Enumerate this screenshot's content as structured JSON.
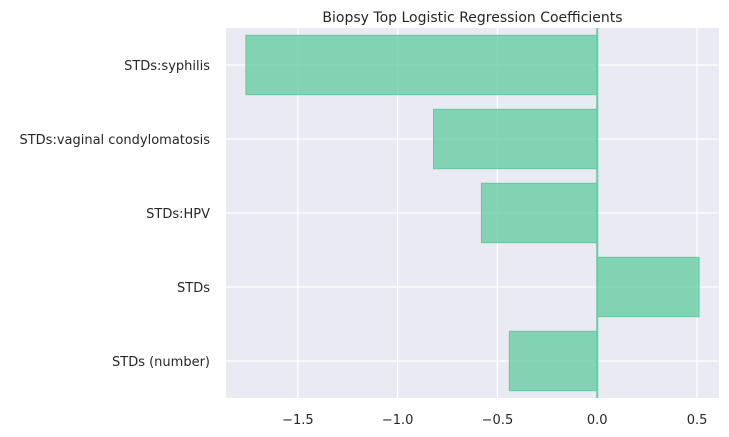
{
  "chart_data": {
    "type": "bar",
    "orientation": "horizontal",
    "title": "Biopsy Top Logistic Regression Coefficients",
    "xlabel": "",
    "ylabel": "",
    "categories": [
      "STDs:syphilis",
      "STDs:vaginal condylomatosis",
      "STDs:HPV",
      "STDs",
      "STDs (number)"
    ],
    "values": [
      -1.76,
      -0.82,
      -0.58,
      0.51,
      -0.44
    ],
    "xlim": [
      -1.86,
      0.61
    ],
    "xticks": [
      -1.5,
      -1.0,
      -0.5,
      0.0,
      0.5
    ],
    "xtick_labels": [
      "−1.5",
      "−1.0",
      "−0.5",
      "0.0",
      "0.5"
    ],
    "grid": true,
    "bar_color": "#66cda4",
    "bar_edge_color": "#66cda4",
    "zero_line_color": "#66cda4",
    "background_color": "#eaeaf2",
    "grid_color": "#ffffff"
  }
}
